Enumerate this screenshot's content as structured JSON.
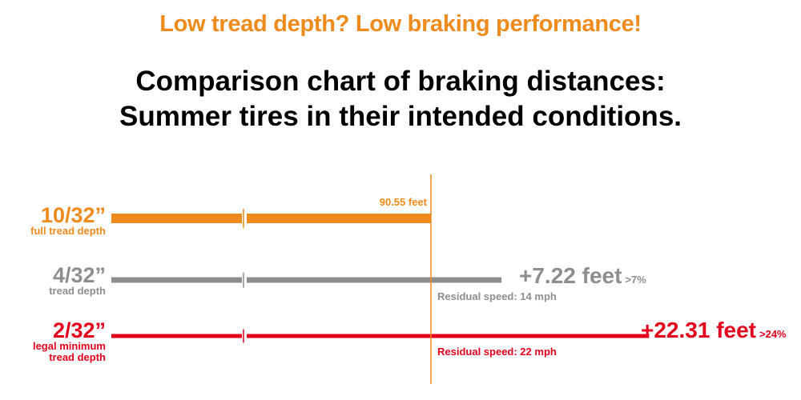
{
  "headline": "Low tread depth? Low braking performance!",
  "title_line1": "Comparison chart of braking distances:",
  "title_line2": "Summer tires in their intended conditions.",
  "colors": {
    "orange": "#ef8a1d",
    "gray": "#8e8e8e",
    "red": "#e3001b",
    "black": "#000000"
  },
  "chart_data": {
    "type": "bar",
    "orientation": "horizontal",
    "title": "Comparison chart of braking distances: Summer tires in their intended conditions.",
    "categories": [
      "10/32” full tread depth",
      "4/32” tread depth",
      "2/32” legal minimum tread depth"
    ],
    "unit": "feet",
    "values": [
      90.55,
      97.77,
      112.86
    ],
    "reference_value": 90.55,
    "axis_break": true,
    "rows": [
      {
        "depth": "10/32”",
        "sub": [
          "full tread depth"
        ],
        "value": 90.55,
        "distance_label": "90.55 feet",
        "color": "#ef8a1d"
      },
      {
        "depth": "4/32”",
        "sub": [
          "tread depth"
        ],
        "value": 97.77,
        "diff": "+7.22 feet",
        "pct": ">7%",
        "residual": "Residual speed: 14 mph",
        "color": "#8e8e8e"
      },
      {
        "depth": "2/32”",
        "sub": [
          "legal minimum",
          "tread depth"
        ],
        "value": 112.86,
        "diff": "+22.31 feet",
        "pct": ">24%",
        "residual": "Residual speed: 22 mph",
        "color": "#e3001b"
      }
    ]
  }
}
